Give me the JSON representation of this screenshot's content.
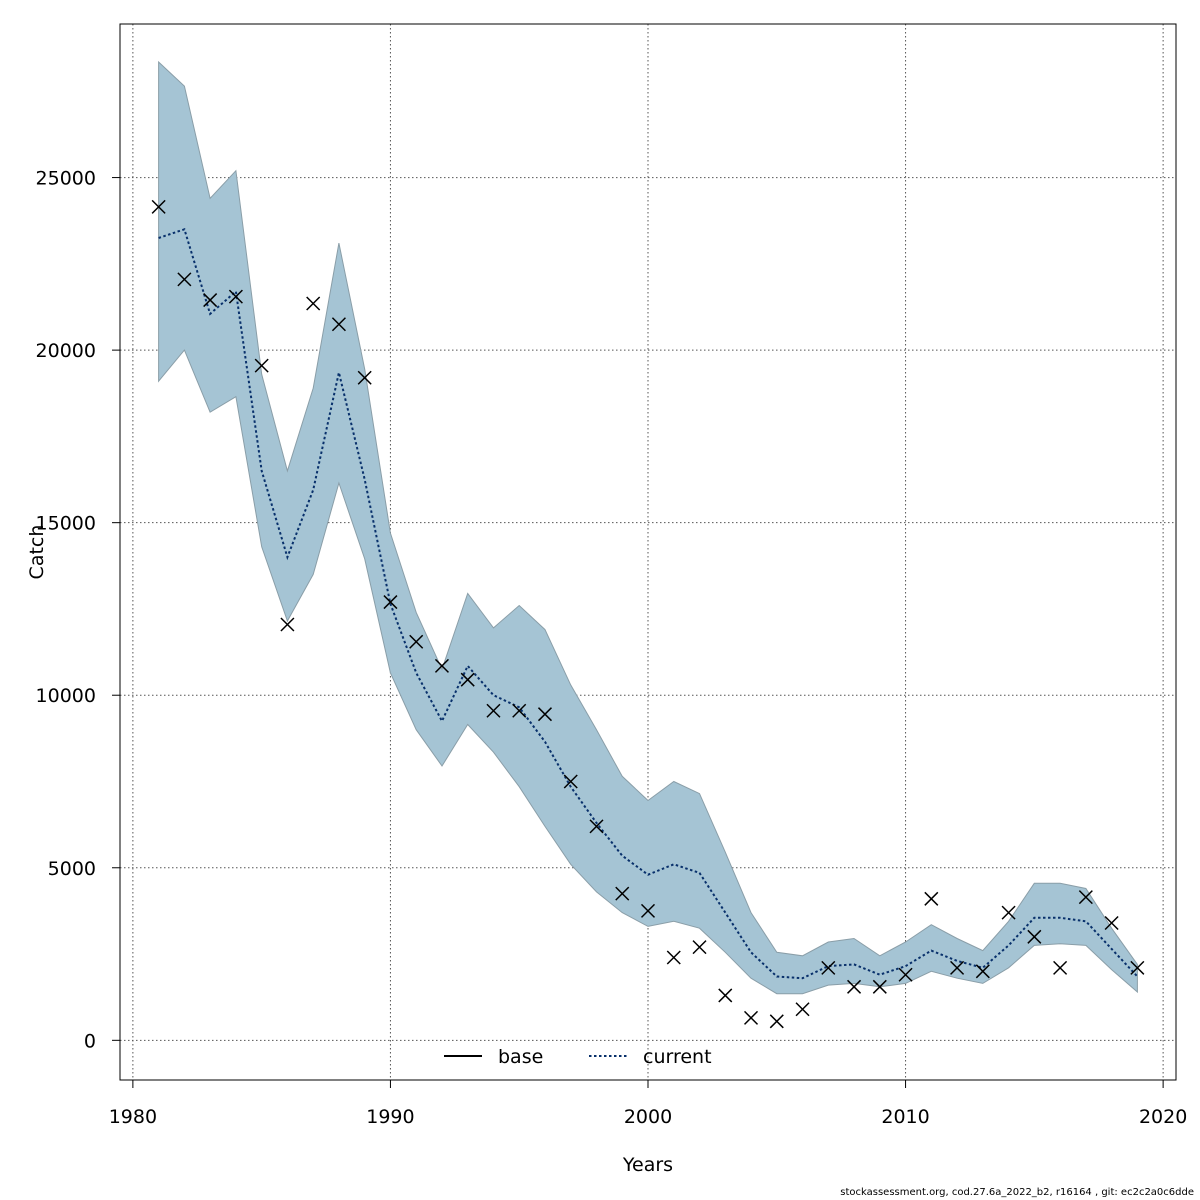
{
  "chart_data": {
    "type": "line",
    "xlabel": "Years",
    "ylabel": "Catch",
    "xlim": [
      1979.5,
      2020.5
    ],
    "ylim": [
      -1150,
      29450
    ],
    "xticks": [
      1980,
      1990,
      2000,
      2010,
      2020
    ],
    "yticks": [
      0,
      5000,
      10000,
      15000,
      20000,
      25000
    ],
    "grid": true,
    "legend_position": "bottom-center",
    "band_color": "#a5c4d4",
    "years": [
      1981,
      1982,
      1983,
      1984,
      1985,
      1986,
      1987,
      1988,
      1989,
      1990,
      1991,
      1992,
      1993,
      1994,
      1995,
      1996,
      1997,
      1998,
      1999,
      2000,
      2001,
      2002,
      2003,
      2004,
      2005,
      2006,
      2007,
      2008,
      2009,
      2010,
      2011,
      2012,
      2013,
      2014,
      2015,
      2016,
      2017,
      2018,
      2019
    ],
    "series": [
      {
        "name": "base",
        "line_style": "solid",
        "color": "#000000",
        "values": []
      },
      {
        "name": "current",
        "line_style": "dotted",
        "color": "#08306b",
        "values": [
          23250,
          23500,
          21050,
          21700,
          16500,
          14000,
          15950,
          19350,
          16250,
          12650,
          10650,
          9250,
          10850,
          10000,
          9650,
          8650,
          7350,
          6300,
          5350,
          4800,
          5100,
          4850,
          3700,
          2550,
          1850,
          1800,
          2150,
          2200,
          1900,
          2150,
          2600,
          2300,
          2100,
          2750,
          3550,
          3550,
          3450,
          2650,
          1850
        ]
      }
    ],
    "band_upper": [
      28350,
      27650,
      24400,
      25200,
      19300,
      16500,
      18900,
      23100,
      19450,
      14700,
      12400,
      10750,
      12950,
      11950,
      12600,
      11900,
      10300,
      9000,
      7650,
      6950,
      7500,
      7150,
      5450,
      3700,
      2550,
      2450,
      2850,
      2950,
      2450,
      2850,
      3350,
      2950,
      2600,
      3450,
      4550,
      4550,
      4400,
      3250,
      2200
    ],
    "band_lower": [
      19100,
      20000,
      18200,
      18650,
      14300,
      12150,
      13500,
      16150,
      13950,
      10650,
      9000,
      7950,
      9150,
      8350,
      7350,
      6200,
      5100,
      4300,
      3700,
      3300,
      3450,
      3250,
      2550,
      1800,
      1350,
      1350,
      1600,
      1650,
      1550,
      1650,
      2000,
      1800,
      1650,
      2100,
      2750,
      2800,
      2750,
      2050,
      1400
    ],
    "observations": [
      24150,
      22050,
      21450,
      21550,
      19550,
      12050,
      21350,
      20750,
      19200,
      12700,
      11550,
      10850,
      10450,
      9550,
      9550,
      9450,
      7500,
      6200,
      4250,
      3750,
      2400,
      2700,
      1300,
      650,
      550,
      900,
      2100,
      1550,
      1550,
      1900,
      4100,
      2100,
      2000,
      3700,
      3000,
      2100,
      4150,
      3400,
      2100
    ]
  },
  "footer": "stockassessment.org, cod.27.6a_2022_b2, r16164 , git: ec2c2a0c6dde"
}
